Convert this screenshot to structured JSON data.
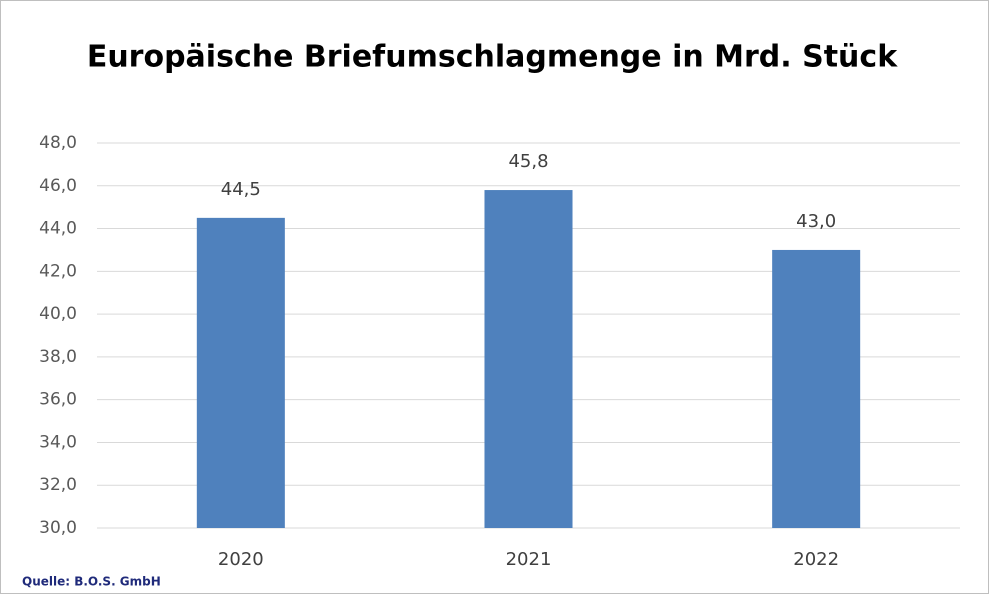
{
  "chart_data": {
    "type": "bar",
    "title": "Europäische Briefumschlagmenge in Mrd. Stück",
    "categories": [
      "2020",
      "2021",
      "2022"
    ],
    "values": [
      44.5,
      45.8,
      43.0
    ],
    "value_labels": [
      "44,5",
      "45,8",
      "43,0"
    ],
    "color": "#4f81bd",
    "ylim": [
      30,
      48
    ],
    "yticks": [
      {
        "value": 30,
        "label": "30,0"
      },
      {
        "value": 32,
        "label": "32,0"
      },
      {
        "value": 34,
        "label": "34,0"
      },
      {
        "value": 36,
        "label": "36,0"
      },
      {
        "value": 38,
        "label": "38,0"
      },
      {
        "value": 40,
        "label": "40,0"
      },
      {
        "value": 42,
        "label": "42,0"
      },
      {
        "value": 44,
        "label": "44,0"
      },
      {
        "value": 46,
        "label": "46,0"
      },
      {
        "value": 48,
        "label": "48,0"
      }
    ],
    "grid": true,
    "source": "Quelle: B.O.S. GmbH"
  }
}
